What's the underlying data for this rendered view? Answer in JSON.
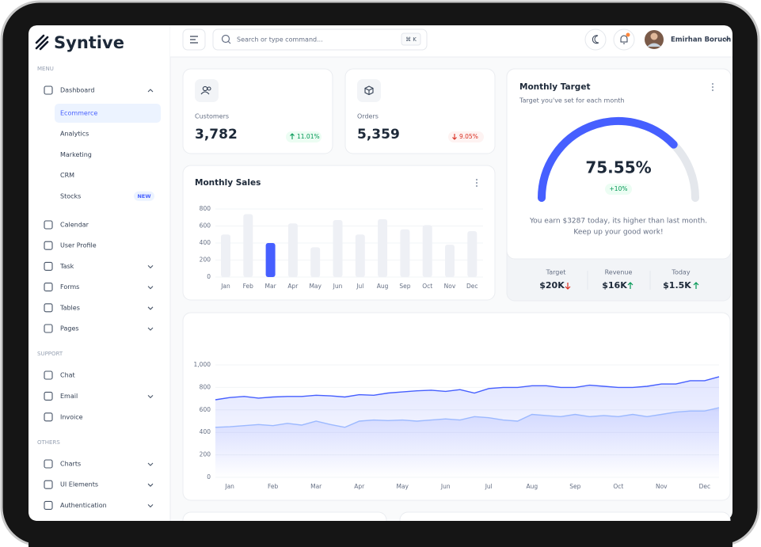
{
  "sidebar": {
    "logo": "Syntive",
    "menu_label": "MENU",
    "dashboard": "Dashboard",
    "dashboard_items": [
      "Ecommerce",
      "Analytics",
      "Marketing",
      "CRM",
      "Stocks"
    ],
    "badge": "NEW",
    "menu_items": [
      "Calendar",
      "User Profile",
      "Task",
      "Forms",
      "Tables",
      "Pages"
    ],
    "support_label": "SUPPORT",
    "support_items": [
      "Chat",
      "Email",
      "Invoice"
    ],
    "others_label": "OTHERS",
    "others_items": [
      "Charts",
      "UI Elements",
      "Authentication"
    ]
  },
  "header": {
    "search_placeholder": "Search or type command...",
    "shortcut": "⌘ K",
    "user": "Emirhan Boruch"
  },
  "cards": [
    {
      "label": "Customers",
      "value": "3,782",
      "change": "11.01%"
    },
    {
      "label": "Orders",
      "value": "5,359",
      "change": "9.05%"
    }
  ],
  "target": {
    "badge": "+10%",
    "message": [
      "You earn $3287 today, its higher than last month.",
      "Keep up your good work!"
    ],
    "stats": [
      {
        "label": "Target",
        "value": "$20K"
      },
      {
        "label": "Revenue",
        "value": "$16K"
      },
      {
        "label": "Today",
        "value": "$1.5K"
      }
    ]
  },
  "chart_data": [
    {
      "type": "bar",
      "title": "Monthly Sales",
      "categories": [
        "Jan",
        "Feb",
        "Mar",
        "Apr",
        "May",
        "Jun",
        "Jul",
        "Aug",
        "Sep",
        "Oct",
        "Nov",
        "Dec"
      ],
      "values": [
        500,
        740,
        400,
        630,
        350,
        670,
        500,
        680,
        560,
        610,
        380,
        540
      ],
      "colors": [
        "#eef0f5",
        "#eef0f5",
        "#465fff",
        "#eef0f5",
        "#eef0f5",
        "#eef0f5",
        "#eef0f5",
        "#eef0f5",
        "#eef0f5",
        "#eef0f5",
        "#eef0f5",
        "#eef0f5"
      ],
      "ylim": [
        0,
        800
      ],
      "yticks": [
        0,
        200,
        400,
        600,
        800
      ],
      "grid": true
    },
    {
      "type": "gauge",
      "title": "Monthly Target",
      "subtitle": "Target you've set for each month",
      "value": 75.55,
      "value_label": "75.55%",
      "ylim": [
        0,
        100
      ],
      "color": "#465fff"
    },
    {
      "type": "line",
      "categories": [
        null,
        "Jan",
        null,
        null,
        "Feb",
        null,
        null,
        "Mar",
        null,
        null,
        "Apr",
        null,
        null,
        "May",
        null,
        null,
        "Jun",
        null,
        null,
        "Jul",
        null,
        null,
        "Aug",
        null,
        null,
        "Sep",
        null,
        null,
        "Oct",
        null,
        null,
        "Nov",
        null,
        null,
        "Dec",
        null
      ],
      "series": [
        {
          "color": "#465fff",
          "values": [
            690,
            710,
            720,
            705,
            715,
            720,
            720,
            730,
            725,
            715,
            735,
            730,
            750,
            760,
            770,
            775,
            765,
            780,
            750,
            790,
            800,
            800,
            815,
            815,
            800,
            800,
            820,
            810,
            800,
            800,
            810,
            830,
            830,
            860,
            860,
            895
          ]
        },
        {
          "color": "#9cb9ff",
          "values": [
            445,
            450,
            460,
            470,
            460,
            480,
            465,
            500,
            470,
            445,
            500,
            510,
            505,
            510,
            500,
            510,
            520,
            510,
            540,
            530,
            510,
            500,
            560,
            550,
            540,
            560,
            540,
            550,
            540,
            560,
            540,
            560,
            580,
            590,
            590,
            620
          ]
        }
      ],
      "ylim": [
        0,
        1000
      ],
      "yticks": [
        0,
        200,
        400,
        600,
        800,
        {
          "value": 1000,
          "label": "1,000"
        }
      ],
      "grid": true
    }
  ]
}
